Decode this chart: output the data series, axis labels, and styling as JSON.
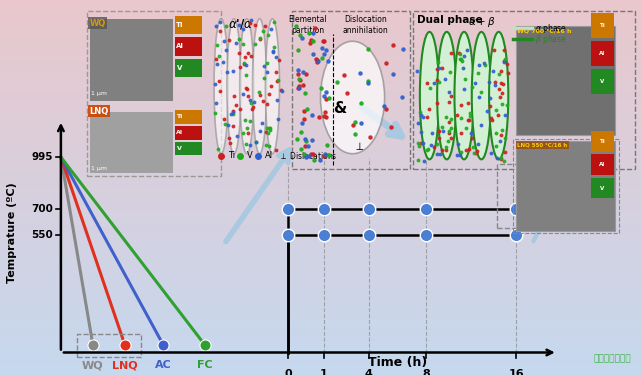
{
  "ylabel": "Temprature (ºC)",
  "xlabel": "Time (h)",
  "yticks": [
    550,
    700,
    995
  ],
  "cooling_labels": [
    "WQ",
    "LNQ",
    "AC",
    "FC"
  ],
  "cooling_colors": [
    "#888888",
    "#e03020",
    "#4060cc",
    "#30a030"
  ],
  "time_labels": [
    "0",
    "1",
    "4",
    "8",
    "16"
  ],
  "aging_temps": [
    700,
    550
  ],
  "bg_top": "#c5d8ee",
  "bg_bottom": "#e8ccd8",
  "dot_color": "#4a7fd4",
  "alpha_phase_color": "#b8e0b8",
  "beta_phase_color": "#30a030",
  "ti_color": "#cc2020",
  "v_color": "#20aa20",
  "al_color": "#3060cc",
  "watermark": "材料科学与工程"
}
